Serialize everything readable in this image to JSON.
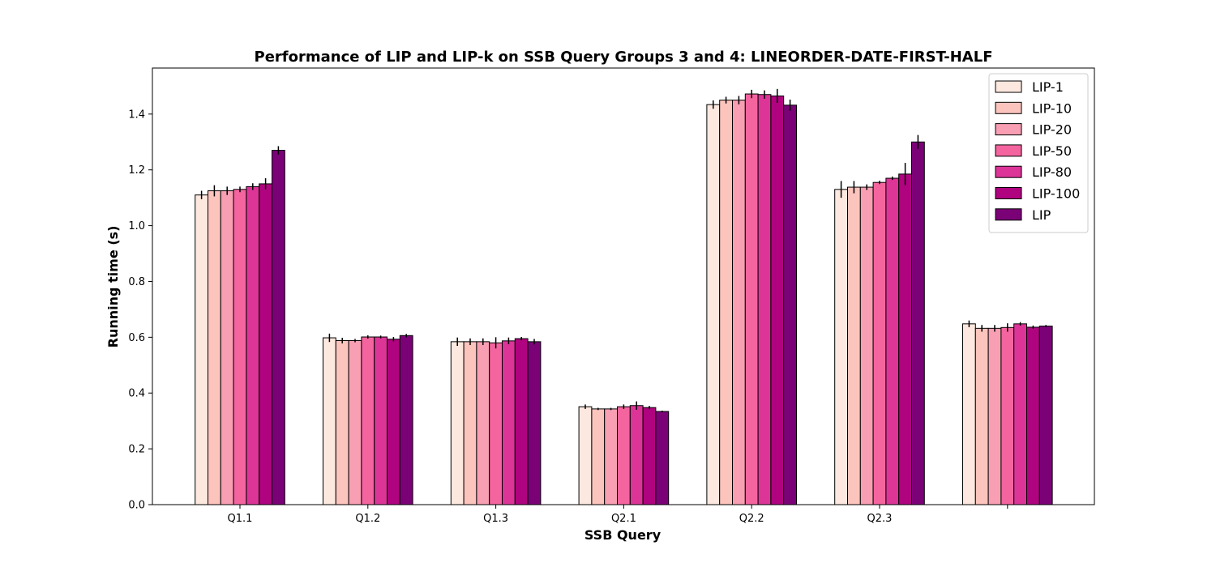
{
  "chart_data": {
    "type": "bar",
    "title": "Performance of LIP and LIP-k on SSB Query Groups 3 and 4: LINEORDER-DATE-FIRST-HALF",
    "xlabel": "SSB Query",
    "ylabel": "Running time (s)",
    "categories": [
      "Q1.1",
      "Q1.2",
      "Q1.3",
      "Q2.1",
      "Q2.2",
      "Q2.3",
      ""
    ],
    "ylim": [
      0,
      1.565
    ],
    "yticks": [
      "0.0",
      "0.2",
      "0.4",
      "0.6",
      "0.8",
      "1.0",
      "1.2",
      "1.4"
    ],
    "grid": false,
    "legend_position": "top-right",
    "series": [
      {
        "name": "LIP-1",
        "color": "#fde8df",
        "values": [
          1.11,
          0.598,
          0.584,
          0.351,
          1.434,
          1.13,
          0.648
        ],
        "errors": [
          0.015,
          0.015,
          0.015,
          0.008,
          0.015,
          0.03,
          0.012
        ]
      },
      {
        "name": "LIP-10",
        "color": "#fbc4bd",
        "values": [
          1.125,
          0.588,
          0.584,
          0.343,
          1.45,
          1.138,
          0.632
        ],
        "errors": [
          0.02,
          0.01,
          0.012,
          0.004,
          0.012,
          0.022,
          0.012
        ]
      },
      {
        "name": "LIP-20",
        "color": "#f89fb3",
        "values": [
          1.125,
          0.588,
          0.584,
          0.343,
          1.45,
          1.138,
          0.632
        ],
        "errors": [
          0.015,
          0.006,
          0.012,
          0.004,
          0.015,
          0.01,
          0.012
        ]
      },
      {
        "name": "LIP-50",
        "color": "#f4659f",
        "values": [
          1.13,
          0.601,
          0.58,
          0.351,
          1.472,
          1.155,
          0.635
        ],
        "errors": [
          0.01,
          0.006,
          0.02,
          0.008,
          0.015,
          0.006,
          0.015
        ]
      },
      {
        "name": "LIP-80",
        "color": "#dd3498",
        "values": [
          1.14,
          0.601,
          0.587,
          0.355,
          1.47,
          1.17,
          0.648
        ],
        "errors": [
          0.012,
          0.005,
          0.012,
          0.015,
          0.015,
          0.006,
          0.006
        ]
      },
      {
        "name": "LIP-100",
        "color": "#b0037f",
        "values": [
          1.15,
          0.593,
          0.595,
          0.348,
          1.465,
          1.185,
          0.636
        ],
        "errors": [
          0.02,
          0.008,
          0.006,
          0.006,
          0.025,
          0.04,
          0.006
        ]
      },
      {
        "name": "LIP",
        "color": "#7b0177",
        "values": [
          1.27,
          0.606,
          0.584,
          0.334,
          1.432,
          1.3,
          0.64
        ],
        "errors": [
          0.015,
          0.006,
          0.01,
          0.003,
          0.02,
          0.025,
          0.004
        ]
      }
    ]
  }
}
